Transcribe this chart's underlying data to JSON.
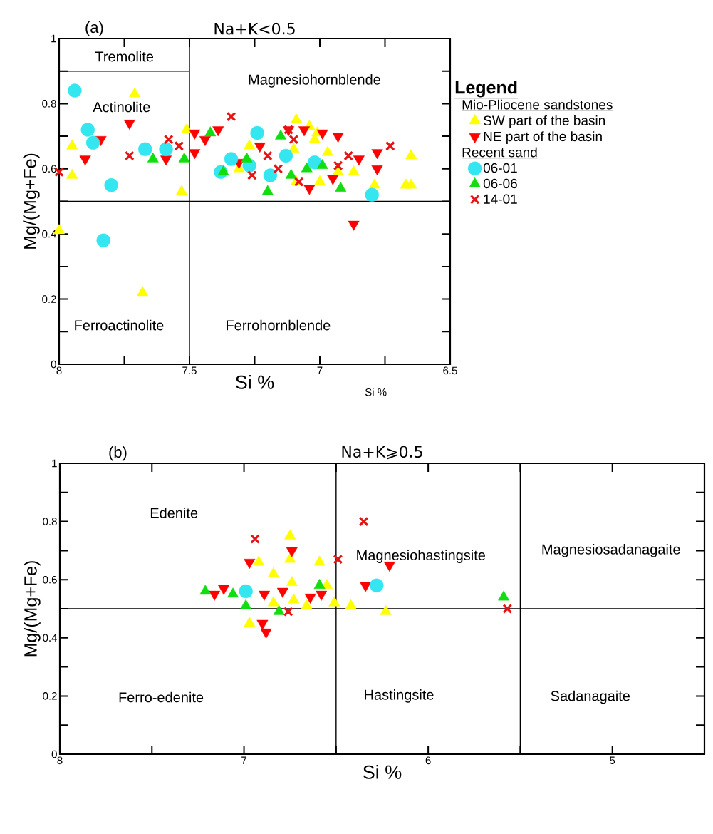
{
  "chart_data": [
    {
      "type": "scatter",
      "title": "Na+K<0.5",
      "xlabel": "Si %",
      "ylabel": "Mg/(Mg+Fe)",
      "xlim": [
        8,
        6.5
      ],
      "ylim": [
        0,
        1
      ],
      "xticks": [
        8,
        {
          "value": 7.75,
          "label": null
        },
        7.5,
        {
          "value": 7.25,
          "label": null
        },
        7,
        {
          "value": 6.75,
          "label": null
        },
        6.5
      ],
      "yticks": [
        0,
        {
          "value": 0.1,
          "label": null
        },
        0.2,
        {
          "value": 0.3,
          "label": null
        },
        0.4,
        {
          "value": 0.5,
          "label": null
        },
        0.6,
        {
          "value": 0.7,
          "label": null
        },
        0.8,
        {
          "value": 0.9,
          "label": null
        },
        1
      ],
      "legend": "right",
      "legend_title": "Legend",
      "series": [
        {
          "name": "SW part of the basin",
          "color": "#ffff00",
          "marker": "triangle",
          "x": [
            7.71,
            7.95,
            7.95,
            7.53,
            8.0,
            7.68,
            7.51,
            7.27,
            7.09,
            7.04,
            7.01,
            7.02,
            6.97,
            6.87,
            6.65,
            6.67,
            6.65,
            7.09,
            7.0,
            6.79,
            7.31,
            7.1,
            6.93
          ],
          "values": [
            0.83,
            0.67,
            0.58,
            0.53,
            0.41,
            0.22,
            0.72,
            0.67,
            0.75,
            0.73,
            0.71,
            0.69,
            0.65,
            0.59,
            0.64,
            0.55,
            0.55,
            0.56,
            0.56,
            0.55,
            0.6,
            0.66,
            0.59
          ]
        },
        {
          "name": "NE part of the basin",
          "color": "#ff0000",
          "marker": "triangle_down",
          "x": [
            7.73,
            7.9,
            7.84,
            7.59,
            7.48,
            7.48,
            7.44,
            7.39,
            7.06,
            6.93,
            7.23,
            6.85,
            6.78,
            6.78,
            6.95,
            7.04,
            6.87,
            7.31,
            7.12,
            6.99
          ],
          "values": [
            0.74,
            0.63,
            0.69,
            0.63,
            0.71,
            0.65,
            0.69,
            0.72,
            0.72,
            0.7,
            0.67,
            0.63,
            0.65,
            0.6,
            0.57,
            0.54,
            0.43,
            0.62,
            0.72,
            0.71
          ]
        },
        {
          "name": "06-01",
          "color": "#33e6f0",
          "marker": "circle",
          "x": [
            7.94,
            7.89,
            7.87,
            7.8,
            7.83,
            7.67,
            7.59,
            7.24,
            7.34,
            7.38,
            7.27,
            7.19,
            7.13,
            7.02,
            6.8
          ],
          "values": [
            0.84,
            0.72,
            0.68,
            0.55,
            0.38,
            0.66,
            0.66,
            0.71,
            0.63,
            0.59,
            0.61,
            0.58,
            0.64,
            0.62,
            0.52
          ]
        },
        {
          "name": "06-06",
          "color": "#11dd11",
          "marker": "triangle",
          "x": [
            7.64,
            7.52,
            7.42,
            7.37,
            7.28,
            7.2,
            7.15,
            7.11,
            7.05,
            6.99,
            6.92
          ],
          "values": [
            0.63,
            0.63,
            0.71,
            0.59,
            0.63,
            0.53,
            0.7,
            0.58,
            0.6,
            0.61,
            0.54
          ]
        },
        {
          "name": "14-01",
          "color": "#e51515",
          "marker": "cross",
          "x": [
            8.0,
            7.73,
            7.58,
            7.54,
            7.34,
            7.2,
            7.26,
            7.16,
            7.12,
            7.1,
            7.08,
            6.93,
            6.89,
            6.73
          ],
          "values": [
            0.59,
            0.64,
            0.69,
            0.67,
            0.76,
            0.64,
            0.58,
            0.6,
            0.72,
            0.69,
            0.56,
            0.61,
            0.64,
            0.67
          ]
        },
        {
          "type": "line",
          "color": "#000000",
          "marker": "none",
          "x": [
            8,
            7.5
          ],
          "values": [
            0.9,
            0.9
          ]
        }
      ],
      "ref_lines": [
        {
          "axis": "y",
          "value": 0.5
        },
        {
          "axis": "x",
          "value": 7.5
        }
      ],
      "annotations": [
        "(a)",
        "Si %",
        "Mio-Pliocene sandstones",
        "Recent sand",
        "Tremolite",
        "Actinolite",
        "Magnesiohornblende",
        "Ferroactinolite",
        "Ferrohornblende"
      ]
    },
    {
      "type": "scatter",
      "title": "Na+K⩾0.5",
      "xlabel": "Si %",
      "ylabel": "Mg/(Mg+Fe)",
      "xlim": [
        8,
        4.5
      ],
      "ylim": [
        0,
        1
      ],
      "xticks": [
        8,
        {
          "value": 7.5,
          "label": null
        },
        7,
        {
          "value": 6.5,
          "label": null
        },
        6,
        {
          "value": 5.5,
          "label": null
        },
        5
      ],
      "yticks": [
        0,
        {
          "value": 0.1,
          "label": null
        },
        0.2,
        {
          "value": 0.3,
          "label": null
        },
        0.4,
        {
          "value": 0.5,
          "label": null
        },
        0.6,
        {
          "value": 0.7,
          "label": null
        },
        0.8,
        {
          "value": 0.9,
          "label": null
        },
        1
      ],
      "series": [
        {
          "color": "#ffff00",
          "marker": "triangle",
          "x": [
            6.75,
            6.75,
            6.59,
            6.84,
            6.74,
            6.55,
            6.92,
            6.97,
            6.84,
            6.66,
            6.51,
            6.42,
            6.23,
            6.73
          ],
          "values": [
            0.75,
            0.67,
            0.66,
            0.62,
            0.59,
            0.58,
            0.66,
            0.45,
            0.52,
            0.51,
            0.52,
            0.51,
            0.49,
            0.53
          ]
        },
        {
          "color": "#ff0000",
          "marker": "triangle_down",
          "x": [
            6.21,
            6.74,
            6.97,
            7.16,
            7.11,
            6.89,
            6.9,
            6.88,
            6.79,
            6.64,
            6.58,
            6.34
          ],
          "values": [
            0.65,
            0.7,
            0.66,
            0.55,
            0.57,
            0.55,
            0.45,
            0.42,
            0.56,
            0.54,
            0.55,
            0.58
          ]
        },
        {
          "color": "#33e6f0",
          "marker": "circle",
          "x": [
            6.99,
            6.28
          ],
          "values": [
            0.56,
            0.58
          ]
        },
        {
          "color": "#11dd11",
          "marker": "triangle",
          "x": [
            7.21,
            7.06,
            6.59,
            5.59,
            6.99,
            6.81
          ],
          "values": [
            0.56,
            0.55,
            0.58,
            0.54,
            0.51,
            0.49
          ]
        },
        {
          "color": "#e51515",
          "marker": "cross",
          "x": [
            6.35,
            6.49,
            6.94,
            6.76,
            5.57
          ],
          "values": [
            0.8,
            0.67,
            0.74,
            0.49,
            0.5
          ]
        }
      ],
      "ref_lines": [
        {
          "axis": "y",
          "value": 0.5
        },
        {
          "axis": "x",
          "value": 6.5
        },
        {
          "axis": "x",
          "value": 5.5
        }
      ],
      "annotations": [
        "(b)",
        "Edenite",
        "Magnesiohastingsite",
        "Magnesiosadanagaite",
        "Ferro-edenite",
        "Hastingsite",
        "Sadanagaite"
      ]
    }
  ]
}
